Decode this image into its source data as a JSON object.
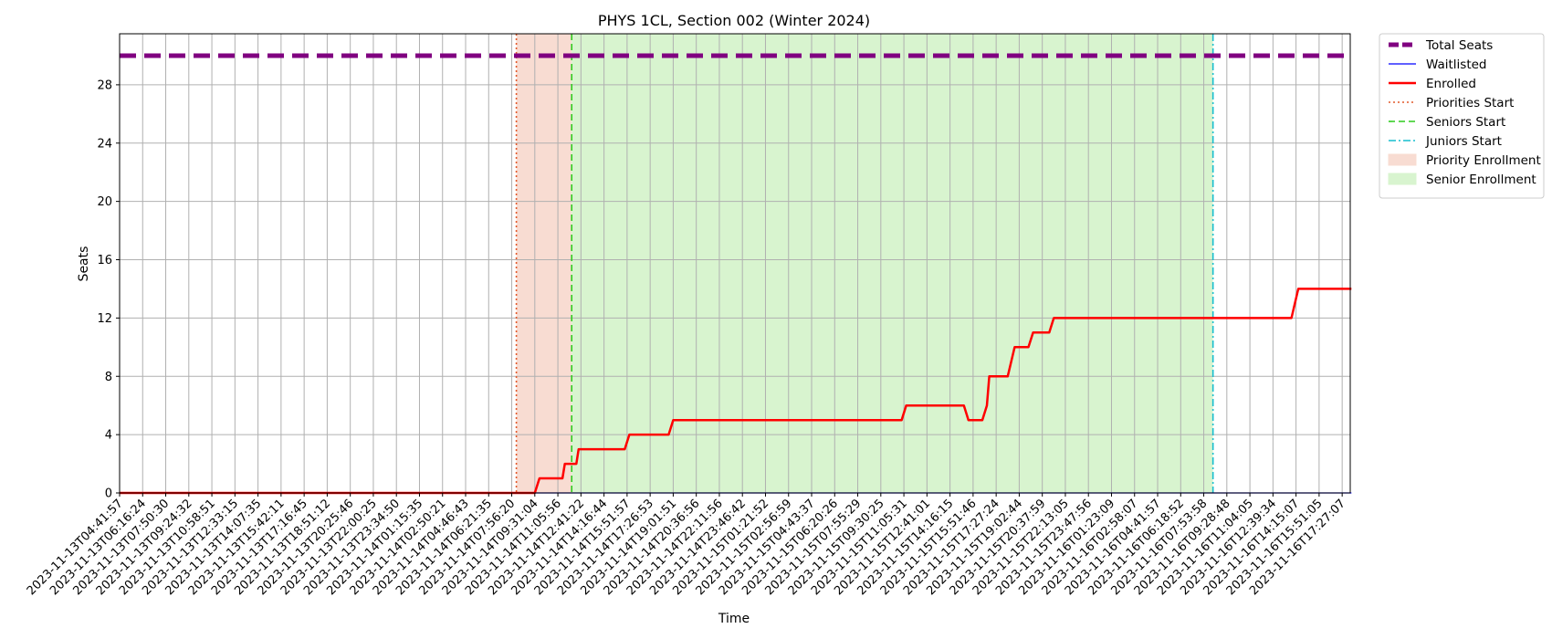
{
  "chart_data": {
    "type": "line",
    "title": "PHYS 1CL, Section 002 (Winter 2024)",
    "xlabel": "Time",
    "ylabel": "Seats",
    "ylim": [
      0,
      31.5
    ],
    "yticks": [
      0,
      4,
      8,
      12,
      16,
      20,
      24,
      28
    ],
    "grid": true,
    "legend_position": "outside-right",
    "x_categories": [
      "2023-11-13T04:41:57",
      "2023-11-13T06:16:24",
      "2023-11-13T07:50:30",
      "2023-11-13T09:24:32",
      "2023-11-13T10:58:51",
      "2023-11-13T12:33:15",
      "2023-11-13T14:07:35",
      "2023-11-13T15:42:11",
      "2023-11-13T17:16:45",
      "2023-11-13T18:51:12",
      "2023-11-13T20:25:46",
      "2023-11-13T22:00:25",
      "2023-11-13T23:34:50",
      "2023-11-14T01:15:35",
      "2023-11-14T02:50:21",
      "2023-11-14T04:46:43",
      "2023-11-14T06:21:35",
      "2023-11-14T07:56:20",
      "2023-11-14T09:31:04",
      "2023-11-14T11:05:56",
      "2023-11-14T12:41:22",
      "2023-11-14T14:16:44",
      "2023-11-14T15:51:57",
      "2023-11-14T17:26:53",
      "2023-11-14T19:01:51",
      "2023-11-14T20:36:56",
      "2023-11-14T22:11:56",
      "2023-11-14T23:46:42",
      "2023-11-15T01:21:52",
      "2023-11-15T02:56:59",
      "2023-11-15T04:43:37",
      "2023-11-15T06:20:26",
      "2023-11-15T07:55:29",
      "2023-11-15T09:30:25",
      "2023-11-15T11:05:31",
      "2023-11-15T12:41:01",
      "2023-11-15T14:16:15",
      "2023-11-15T15:51:46",
      "2023-11-15T17:27:24",
      "2023-11-15T19:02:44",
      "2023-11-15T20:37:59",
      "2023-11-15T22:13:05",
      "2023-11-15T23:47:56",
      "2023-11-16T01:23:09",
      "2023-11-16T02:58:07",
      "2023-11-16T04:41:57",
      "2023-11-16T06:18:52",
      "2023-11-16T07:53:58",
      "2023-11-16T09:28:48",
      "2023-11-16T11:04:05",
      "2023-11-16T12:39:34",
      "2023-11-16T14:15:07",
      "2023-11-16T15:51:05",
      "2023-11-16T17:27:07"
    ],
    "series": [
      {
        "name": "Total Seats",
        "color": "#800080",
        "style": "dashed-thick",
        "points": [
          [
            0,
            30
          ],
          [
            53.4,
            30
          ]
        ]
      },
      {
        "name": "Waitlisted",
        "color": "#0000ff",
        "style": "solid-thin",
        "points": [
          [
            0,
            0
          ],
          [
            53.4,
            0
          ]
        ]
      },
      {
        "name": "Enrolled",
        "color": "#ff0000",
        "style": "solid",
        "points": [
          [
            0,
            0
          ],
          [
            18.0,
            0
          ],
          [
            18.2,
            1
          ],
          [
            19.2,
            1
          ],
          [
            19.3,
            2
          ],
          [
            19.8,
            2
          ],
          [
            19.9,
            3
          ],
          [
            21.9,
            3
          ],
          [
            22.1,
            4
          ],
          [
            23.8,
            4
          ],
          [
            24.0,
            5
          ],
          [
            33.9,
            5
          ],
          [
            34.1,
            6
          ],
          [
            36.6,
            6
          ],
          [
            36.8,
            5
          ],
          [
            37.4,
            5
          ],
          [
            37.6,
            6
          ],
          [
            37.7,
            8
          ],
          [
            38.5,
            8
          ],
          [
            38.8,
            10
          ],
          [
            39.4,
            10
          ],
          [
            39.6,
            11
          ],
          [
            40.3,
            11
          ],
          [
            40.5,
            12
          ],
          [
            50.8,
            12
          ],
          [
            51.1,
            14
          ],
          [
            53.4,
            14
          ]
        ]
      }
    ],
    "markers": [
      {
        "name": "Priorities Start",
        "x": 17.2,
        "color": "#e2582a",
        "style": "dotted"
      },
      {
        "name": "Seniors Start",
        "x": 19.6,
        "color": "#2ecc1f",
        "style": "dashed"
      },
      {
        "name": "Juniors Start",
        "x": 47.4,
        "color": "#17becf",
        "style": "dashdot"
      }
    ],
    "spans": [
      {
        "name": "Priority Enrollment",
        "from": 17.2,
        "to": 19.6,
        "color": "#f8dcd2"
      },
      {
        "name": "Senior Enrollment",
        "from": 19.6,
        "to": 47.4,
        "color": "#d8f4cf"
      }
    ],
    "legend": [
      "Total Seats",
      "Waitlisted",
      "Enrolled",
      "Priorities Start",
      "Seniors Start",
      "Juniors Start",
      "Priority Enrollment",
      "Senior Enrollment"
    ]
  }
}
